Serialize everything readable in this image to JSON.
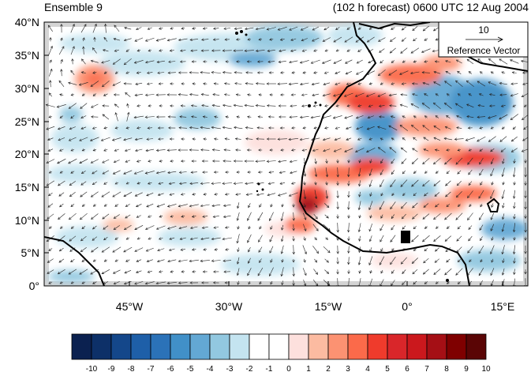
{
  "header": {
    "ensemble_label": "Ensemble 9",
    "forecast_label": "(102 h forecast) 0600 UTC 12 Aug 2004"
  },
  "reference_vector": {
    "magnitude": "10",
    "label": "Reference Vector"
  },
  "axes": {
    "lat_ticks": [
      "40°N",
      "35°N",
      "30°N",
      "25°N",
      "20°N",
      "15°N",
      "10°N",
      "5°N",
      "0°"
    ],
    "lon_ticks": [
      "45°W",
      "30°W",
      "15°W",
      "0°",
      "15°E"
    ]
  },
  "colorbar": {
    "labels": [
      "-10",
      "-9",
      "-8",
      "-7",
      "-6",
      "-5",
      "-4",
      "-3",
      "-2",
      "-1",
      "0",
      "1",
      "2",
      "3",
      "4",
      "5",
      "6",
      "7",
      "8",
      "9",
      "10"
    ],
    "colors": [
      "#0b2150",
      "#0d3068",
      "#14478a",
      "#1e5fa8",
      "#2b72b8",
      "#4190c8",
      "#63a8d4",
      "#92c8e0",
      "#c4e4f0",
      "#ffffff",
      "#ffffff",
      "#fde0dd",
      "#fcbba1",
      "#fc9272",
      "#fb6a4a",
      "#ef3b2c",
      "#d9262a",
      "#cb181d",
      "#a50f15",
      "#7f0000",
      "#5a0505"
    ]
  }
}
